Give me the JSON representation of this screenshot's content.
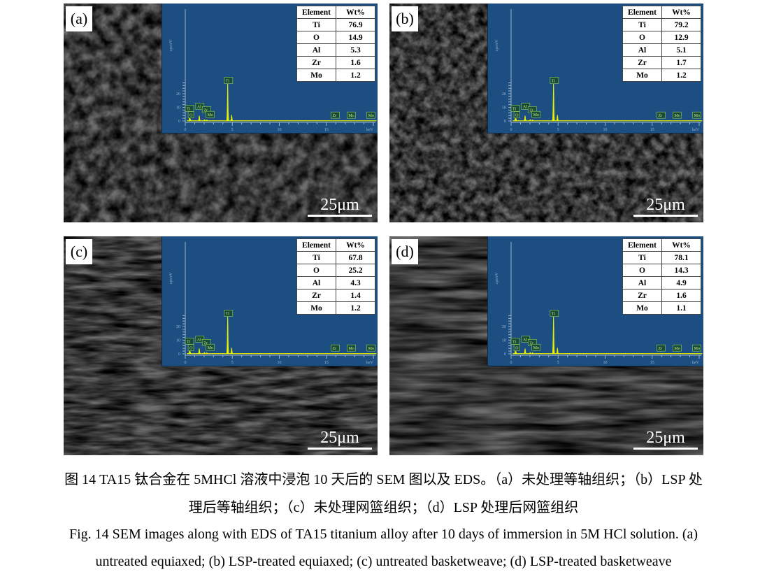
{
  "panels": [
    {
      "label": "(a)",
      "scale": "25μm",
      "texture": "equiaxed",
      "eds": {
        "headers": [
          "Element",
          "Wt%"
        ],
        "rows": [
          [
            "Ti",
            "76.9"
          ],
          [
            "O",
            "14.9"
          ],
          [
            "Al",
            "5.3"
          ],
          [
            "Zr",
            "1.6"
          ],
          [
            "Mo",
            "1.2"
          ]
        ]
      }
    },
    {
      "label": "(b)",
      "scale": "25μm",
      "texture": "equiaxed-fine",
      "eds": {
        "headers": [
          "Element",
          "Wt%"
        ],
        "rows": [
          [
            "Ti",
            "79.2"
          ],
          [
            "O",
            "12.9"
          ],
          [
            "Al",
            "5.1"
          ],
          [
            "Zr",
            "1.7"
          ],
          [
            "Mo",
            "1.2"
          ]
        ]
      }
    },
    {
      "label": "(c)",
      "scale": "25μm",
      "texture": "basketweave",
      "eds": {
        "headers": [
          "Element",
          "Wt%"
        ],
        "rows": [
          [
            "Ti",
            "67.8"
          ],
          [
            "O",
            "25.2"
          ],
          [
            "Al",
            "4.3"
          ],
          [
            "Zr",
            "1.4"
          ],
          [
            "Mo",
            "1.2"
          ]
        ]
      }
    },
    {
      "label": "(d)",
      "scale": "25μm",
      "texture": "basketweave-lsp",
      "eds": {
        "headers": [
          "Element",
          "Wt%"
        ],
        "rows": [
          [
            "Ti",
            "78.1"
          ],
          [
            "O",
            "14.3"
          ],
          [
            "Al",
            "4.9"
          ],
          [
            "Zr",
            "1.6"
          ],
          [
            "Mo",
            "1.1"
          ]
        ]
      }
    }
  ],
  "chart_data": {
    "type": "line",
    "xlabel": "keV",
    "ylabel": "cps/eV",
    "xlim": [
      0,
      20.5
    ],
    "ylim": [
      0,
      29
    ],
    "xticks": [
      0,
      5,
      10,
      15
    ],
    "yticks": [
      0,
      10,
      20
    ],
    "peaks": [
      {
        "label": "Ti",
        "energy": 0.45,
        "height": 1.6
      },
      {
        "label": "O",
        "energy": 0.52,
        "height": 1.2
      },
      {
        "label": "Al",
        "energy": 1.49,
        "height": 3.6
      },
      {
        "label": "Zr",
        "energy": 2.04,
        "height": 0.8
      },
      {
        "label": "Mo",
        "energy": 2.29,
        "height": 0.6
      },
      {
        "label": "Ti",
        "energy": 4.51,
        "height": 27.8
      },
      {
        "label": "",
        "energy": 4.93,
        "height": 4.2
      }
    ],
    "marker_labels": [
      {
        "label": "Zr",
        "energy": 15.8
      },
      {
        "label": "Mo",
        "energy": 17.5
      },
      {
        "label": "Mo",
        "energy": 19.6
      }
    ],
    "colors": {
      "background": "#1d4e82",
      "spectrum": "#e8f000"
    }
  },
  "caption": {
    "cn_line1": "图 14 TA15 钛合金在 5MHCl 溶液中浸泡 10 天后的 SEM 图以及 EDS。（a）未处理等轴组织；（b）LSP 处",
    "cn_line2": "理后等轴组织；（c）未处理网篮组织；（d）LSP 处理后网篮组织",
    "en_line1": "Fig. 14 SEM images along with EDS of TA15 titanium alloy after 10 days of immersion in 5M HCl solution. (a)",
    "en_line2": "untreated equiaxed; (b) LSP-treated equiaxed; (c) untreated basketweave; (d) LSP-treated basketweave"
  }
}
